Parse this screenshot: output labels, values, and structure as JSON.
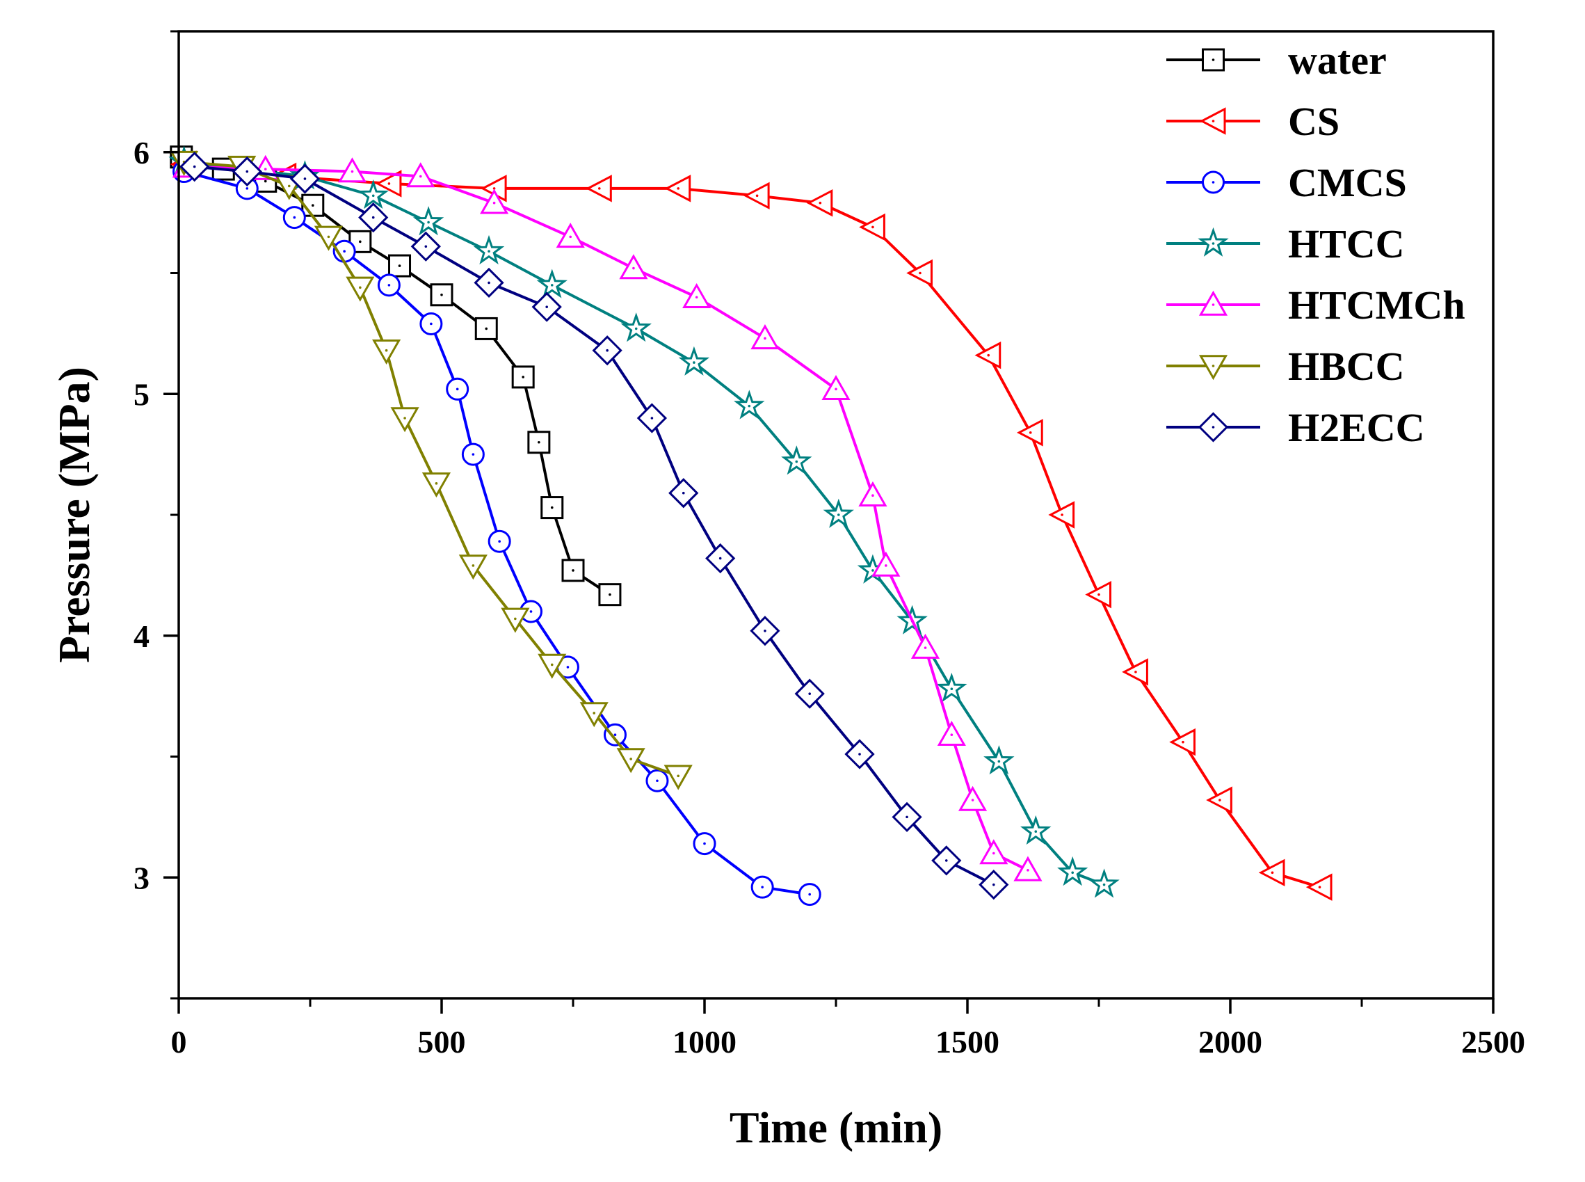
{
  "chart_data": {
    "type": "line",
    "title": "",
    "xlabel": "Time (min)",
    "ylabel": "Pressure (MPa)",
    "xlim": [
      0,
      2500
    ],
    "ylim": [
      2.5,
      6.5
    ],
    "x_ticks": [
      0,
      500,
      1000,
      1500,
      2000,
      2500
    ],
    "x_tick_labels": [
      "0",
      "500",
      "1000",
      "1500",
      "2000",
      "2500"
    ],
    "y_ticks": [
      3,
      4,
      5,
      6
    ],
    "y_tick_labels": [
      "3",
      "4",
      "5",
      "6"
    ],
    "legend_position": "top-right",
    "series": [
      {
        "name": "water",
        "color": "#000000",
        "marker": "square",
        "x": [
          5,
          85,
          165,
          255,
          345,
          420,
          500,
          585,
          655,
          685,
          710,
          750,
          820
        ],
        "y": [
          5.98,
          5.93,
          5.88,
          5.78,
          5.63,
          5.53,
          5.41,
          5.27,
          5.07,
          4.8,
          4.53,
          4.27,
          4.17
        ]
      },
      {
        "name": "CS",
        "color": "#ff0000",
        "marker": "triangle-left",
        "x": [
          10,
          200,
          400,
          600,
          800,
          950,
          1100,
          1220,
          1320,
          1410,
          1540,
          1620,
          1680,
          1750,
          1820,
          1910,
          1980,
          2080,
          2170
        ],
        "y": [
          5.95,
          5.9,
          5.87,
          5.85,
          5.85,
          5.85,
          5.82,
          5.79,
          5.69,
          5.5,
          5.16,
          4.84,
          4.5,
          4.17,
          3.85,
          3.56,
          3.32,
          3.02,
          2.96
        ]
      },
      {
        "name": "CMCS",
        "color": "#0000ff",
        "marker": "circle",
        "x": [
          10,
          130,
          220,
          315,
          400,
          480,
          530,
          560,
          610,
          670,
          740,
          830,
          910,
          1000,
          1110,
          1200
        ],
        "y": [
          5.92,
          5.85,
          5.73,
          5.59,
          5.45,
          5.29,
          5.02,
          4.75,
          4.39,
          4.1,
          3.87,
          3.59,
          3.4,
          3.14,
          2.96,
          2.93
        ]
      },
      {
        "name": "HTCC",
        "color": "#008080",
        "marker": "star",
        "x": [
          10,
          240,
          370,
          475,
          590,
          710,
          870,
          980,
          1085,
          1175,
          1255,
          1320,
          1395,
          1470,
          1560,
          1630,
          1700,
          1760
        ],
        "y": [
          5.96,
          5.9,
          5.82,
          5.71,
          5.59,
          5.45,
          5.27,
          5.13,
          4.95,
          4.72,
          4.5,
          4.27,
          4.06,
          3.78,
          3.48,
          3.19,
          3.02,
          2.97
        ]
      },
      {
        "name": "HTCMCh",
        "color": "#ff00ff",
        "marker": "triangle-up",
        "x": [
          15,
          165,
          330,
          460,
          600,
          745,
          865,
          985,
          1115,
          1250,
          1320,
          1345,
          1420,
          1470,
          1510,
          1550,
          1615
        ],
        "y": [
          5.94,
          5.93,
          5.92,
          5.9,
          5.79,
          5.65,
          5.52,
          5.4,
          5.23,
          5.02,
          4.58,
          4.29,
          3.95,
          3.59,
          3.32,
          3.1,
          3.03
        ]
      },
      {
        "name": "HBCC",
        "color": "#808000",
        "marker": "triangle-down",
        "x": [
          10,
          120,
          210,
          285,
          345,
          395,
          430,
          490,
          560,
          640,
          710,
          790,
          860,
          950
        ],
        "y": [
          5.96,
          5.94,
          5.86,
          5.65,
          5.44,
          5.18,
          4.9,
          4.63,
          4.29,
          4.07,
          3.88,
          3.68,
          3.49,
          3.42
        ]
      },
      {
        "name": "H2ECC",
        "color": "#000080",
        "marker": "diamond",
        "x": [
          30,
          130,
          240,
          370,
          470,
          590,
          700,
          815,
          900,
          960,
          1030,
          1115,
          1200,
          1295,
          1385,
          1460,
          1550
        ],
        "y": [
          5.94,
          5.92,
          5.89,
          5.73,
          5.61,
          5.46,
          5.36,
          5.18,
          4.9,
          4.59,
          4.32,
          4.02,
          3.76,
          3.51,
          3.25,
          3.07,
          2.97
        ]
      }
    ]
  }
}
